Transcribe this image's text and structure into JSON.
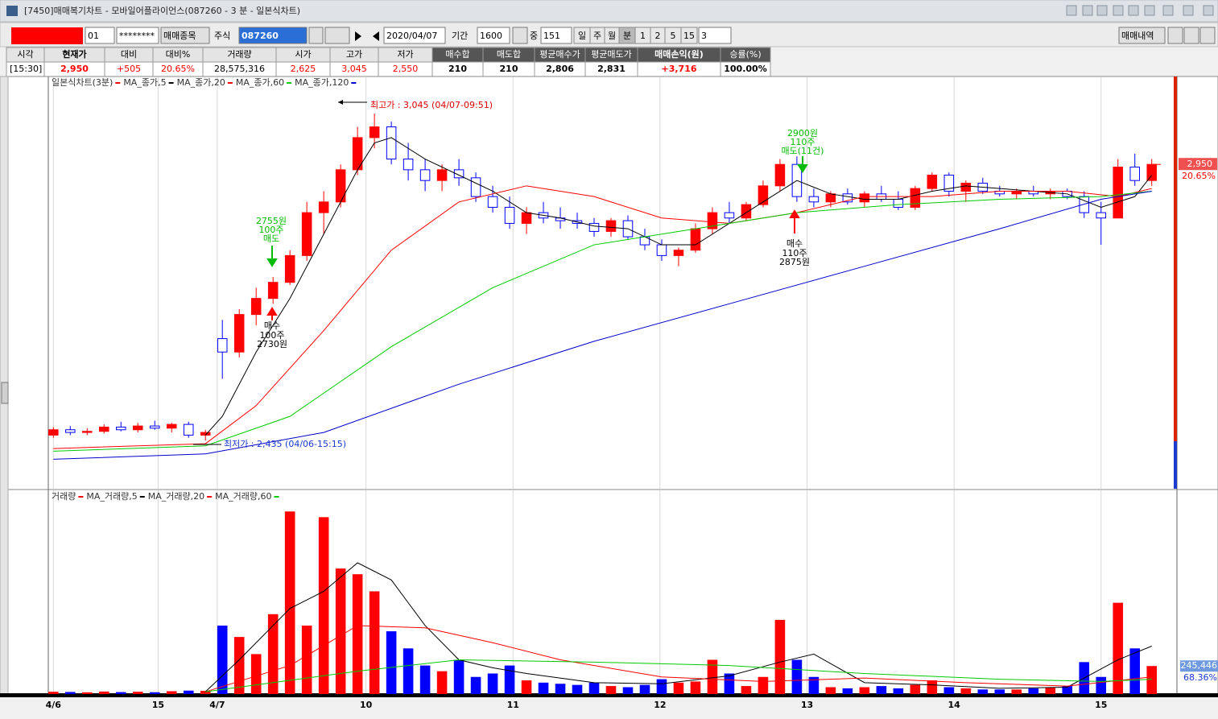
{
  "window": {
    "title": "[7450]매매복기차트 - 모바일어플라이언스(087260 - 3 분 - 일본식차트)"
  },
  "toolbar": {
    "account": "01",
    "password": "********",
    "stock_button": "매매종목",
    "market": "주식",
    "code": "087260",
    "date": "2020/04/07",
    "period_label": "기간",
    "period": "1600",
    "mid_label": "중",
    "count": "151",
    "units": [
      "일",
      "주",
      "월",
      "분",
      "1",
      "2",
      "5",
      "15"
    ],
    "interval": "3",
    "trades_button": "매매내역"
  },
  "summary": {
    "headers": [
      "시각",
      "현재가",
      "대비",
      "대비%",
      "거래량",
      "시가",
      "고가",
      "저가",
      "매수합",
      "매도합",
      "평균매수가",
      "평균매도가",
      "매매손익(원)",
      "승률(%)"
    ],
    "values": [
      "[15:30]",
      "2,950",
      "+505",
      "20.65%",
      "28,575,316",
      "2,625",
      "3,045",
      "2,550",
      "210",
      "210",
      "2,806",
      "2,831",
      "+3,716",
      "100.00%"
    ]
  },
  "chart_data": [
    {
      "type": "candlestick",
      "title": "일본식차트(3분)",
      "title_color": "#ff0000",
      "up_color": "#ff0000",
      "down_color": "#0000ff",
      "xlim": [
        -0.3,
        66.3
      ],
      "xticks": [
        {
          "value": 0,
          "label": "4/6"
        },
        {
          "value": 6.2,
          "label": "15"
        },
        {
          "value": 9.7,
          "label": "4/7"
        },
        {
          "value": 18.5,
          "label": "10"
        },
        {
          "value": 27.2,
          "label": "11"
        },
        {
          "value": 35.9,
          "label": "12"
        },
        {
          "value": 44.6,
          "label": "13"
        },
        {
          "value": 53.3,
          "label": "14"
        },
        {
          "value": 62,
          "label": "15"
        }
      ],
      "ylim": [
        2348,
        3111
      ],
      "open": [
        2445,
        2455,
        2450,
        2452,
        2460,
        2455,
        2462,
        2458,
        2465,
        2445,
        2625,
        2600,
        2670,
        2700,
        2730,
        2780,
        2860,
        2880,
        2940,
        3000,
        3020,
        2960,
        2940,
        2920,
        2940,
        2925,
        2890,
        2870,
        2840,
        2860,
        2850,
        2845,
        2840,
        2825,
        2845,
        2815,
        2800,
        2780,
        2790,
        2830,
        2860,
        2850,
        2875,
        2910,
        2950,
        2890,
        2880,
        2895,
        2880,
        2895,
        2885,
        2870,
        2905,
        2930,
        2900,
        2915,
        2900,
        2895,
        2900,
        2895,
        2900,
        2890,
        2860,
        2850,
        2945,
        2920
      ],
      "high": [
        2460,
        2462,
        2458,
        2465,
        2470,
        2468,
        2472,
        2468,
        2470,
        2455,
        2660,
        2680,
        2720,
        2740,
        2790,
        2880,
        2900,
        2950,
        3020,
        3045,
        3030,
        2990,
        2960,
        2950,
        2960,
        2935,
        2910,
        2890,
        2870,
        2880,
        2870,
        2860,
        2850,
        2850,
        2855,
        2830,
        2810,
        2795,
        2840,
        2870,
        2880,
        2880,
        2920,
        2960,
        2965,
        2905,
        2900,
        2905,
        2900,
        2910,
        2900,
        2910,
        2935,
        2935,
        2920,
        2925,
        2910,
        2905,
        2910,
        2905,
        2905,
        2900,
        2880,
        2960,
        2970,
        2960
      ],
      "low": [
        2440,
        2445,
        2445,
        2448,
        2452,
        2450,
        2455,
        2450,
        2440,
        2435,
        2550,
        2590,
        2650,
        2690,
        2725,
        2770,
        2820,
        2870,
        2930,
        2980,
        2950,
        2920,
        2900,
        2900,
        2910,
        2880,
        2860,
        2830,
        2820,
        2840,
        2830,
        2830,
        2815,
        2815,
        2810,
        2790,
        2770,
        2760,
        2785,
        2820,
        2840,
        2845,
        2870,
        2900,
        2880,
        2870,
        2870,
        2875,
        2870,
        2880,
        2865,
        2865,
        2900,
        2890,
        2880,
        2895,
        2890,
        2885,
        2890,
        2885,
        2885,
        2850,
        2800,
        2850,
        2910,
        2910
      ],
      "close": [
        2455,
        2450,
        2452,
        2460,
        2455,
        2462,
        2458,
        2465,
        2445,
        2450,
        2600,
        2670,
        2700,
        2730,
        2780,
        2860,
        2880,
        2940,
        3000,
        3020,
        2960,
        2940,
        2920,
        2940,
        2925,
        2890,
        2870,
        2840,
        2860,
        2850,
        2845,
        2840,
        2825,
        2845,
        2815,
        2800,
        2780,
        2790,
        2830,
        2860,
        2850,
        2875,
        2910,
        2950,
        2890,
        2880,
        2895,
        2880,
        2895,
        2885,
        2870,
        2905,
        2930,
        2900,
        2915,
        2900,
        2895,
        2900,
        2895,
        2900,
        2890,
        2860,
        2850,
        2945,
        2920,
        2950
      ],
      "series": [
        {
          "name": "MA_종가,5",
          "color": "#000000",
          "x": [
            9,
            10,
            12,
            14,
            16,
            18,
            19,
            20,
            22,
            24,
            26,
            28,
            30,
            32,
            34,
            36,
            38,
            40,
            42,
            44,
            46,
            48,
            50,
            52,
            54,
            56,
            58,
            60,
            62,
            64,
            65
          ],
          "values": [
            2445,
            2480,
            2600,
            2700,
            2820,
            2940,
            2990,
            3000,
            2960,
            2930,
            2900,
            2860,
            2850,
            2835,
            2830,
            2800,
            2800,
            2840,
            2880,
            2920,
            2895,
            2885,
            2885,
            2900,
            2910,
            2905,
            2900,
            2895,
            2870,
            2890,
            2930
          ]
        },
        {
          "name": "MA_종가,20",
          "color": "#ff0000",
          "x": [
            0,
            9,
            12,
            16,
            20,
            24,
            28,
            32,
            36,
            40,
            44,
            48,
            52,
            56,
            60,
            63,
            65
          ],
          "values": [
            2420,
            2429,
            2500,
            2640,
            2790,
            2880,
            2910,
            2890,
            2850,
            2840,
            2860,
            2890,
            2890,
            2900,
            2900,
            2890,
            2905
          ]
        },
        {
          "name": "MA_종가,60",
          "color": "#00cc00",
          "x": [
            0,
            9,
            14,
            20,
            26,
            32,
            38,
            44,
            50,
            56,
            62,
            65
          ],
          "values": [
            2415,
            2425,
            2480,
            2610,
            2720,
            2800,
            2830,
            2860,
            2875,
            2885,
            2890,
            2900
          ]
        },
        {
          "name": "MA_종가,120",
          "color": "#0000cc",
          "x": [
            0,
            9,
            16,
            24,
            32,
            40,
            48,
            56,
            62,
            65
          ],
          "values": [
            2400,
            2410,
            2450,
            2540,
            2620,
            2690,
            2760,
            2830,
            2885,
            2900
          ]
        }
      ],
      "high_note": "최고가 : 3,045 (04/07-09:51)",
      "low_note": "최저가 : 2,435 (04/06-15:15)",
      "trades": [
        {
          "side": "매수",
          "qty": "100주",
          "price": "2730원"
        },
        {
          "price": "2755원",
          "qty": "100주",
          "side": "매도"
        },
        {
          "price": "2900원",
          "qty": "110주",
          "side": "매도(11건)"
        },
        {
          "side": "매수",
          "qty": "110주",
          "price": "2875원"
        }
      ],
      "current_label": {
        "value": 2950,
        "label": "2,950"
      },
      "change_label": "20.65%"
    },
    {
      "type": "bar",
      "title": "거래량",
      "title_color": "#ff0000",
      "ylim": [
        0,
        1750000
      ],
      "values": [
        20000,
        18000,
        15000,
        22000,
        17000,
        20000,
        16000,
        25000,
        30000,
        28000,
        600000,
        500000,
        350000,
        700000,
        1600000,
        600000,
        1550000,
        1100000,
        1050000,
        900000,
        550000,
        400000,
        250000,
        200000,
        300000,
        150000,
        180000,
        250000,
        120000,
        100000,
        90000,
        80000,
        100000,
        70000,
        60000,
        80000,
        130000,
        100000,
        110000,
        300000,
        180000,
        70000,
        150000,
        650000,
        300000,
        150000,
        60000,
        50000,
        60000,
        70000,
        50000,
        80000,
        120000,
        60000,
        50000,
        40000,
        40000,
        40000,
        50000,
        60000,
        70000,
        280000,
        150000,
        800000,
        400000,
        245446
      ],
      "series": [
        {
          "name": "MA_거래량,5",
          "color": "#000000",
          "x": [
            9,
            11,
            14,
            16,
            18,
            20,
            22,
            24,
            26,
            28,
            32,
            36,
            40,
            43,
            45,
            48,
            52,
            56,
            60,
            63,
            65
          ],
          "values": [
            20000,
            300000,
            750000,
            900000,
            1150000,
            1000000,
            600000,
            300000,
            230000,
            180000,
            100000,
            90000,
            160000,
            280000,
            350000,
            100000,
            80000,
            50000,
            60000,
            300000,
            420000
          ]
        },
        {
          "name": "MA_거래량,20",
          "color": "#ff0000",
          "x": [
            9,
            14,
            18,
            22,
            26,
            30,
            36,
            42,
            48,
            54,
            60,
            65
          ],
          "values": [
            20000,
            250000,
            600000,
            580000,
            450000,
            300000,
            150000,
            110000,
            140000,
            100000,
            70000,
            150000
          ]
        },
        {
          "name": "MA_거래량,60",
          "color": "#00cc00",
          "x": [
            9,
            18,
            24,
            32,
            40,
            48,
            56,
            62,
            65
          ],
          "values": [
            20000,
            200000,
            300000,
            280000,
            250000,
            180000,
            130000,
            110000,
            130000
          ]
        }
      ],
      "current_label": {
        "value": 245446,
        "label": "245,446"
      },
      "ratio_label": "68.36%"
    }
  ]
}
